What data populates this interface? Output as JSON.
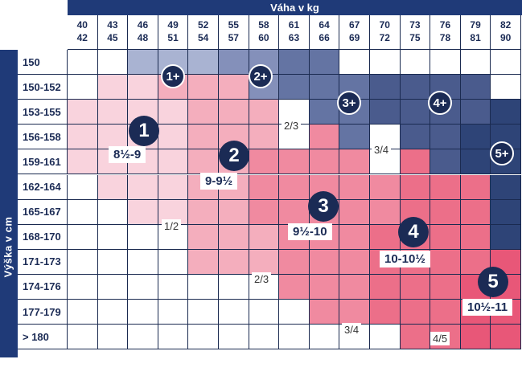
{
  "header": {
    "title": "Váha v kg"
  },
  "side": {
    "title": "Výška v cm"
  },
  "weights": [
    {
      "lo": "40",
      "hi": "42"
    },
    {
      "lo": "43",
      "hi": "45"
    },
    {
      "lo": "46",
      "hi": "48"
    },
    {
      "lo": "49",
      "hi": "51"
    },
    {
      "lo": "52",
      "hi": "54"
    },
    {
      "lo": "55",
      "hi": "57"
    },
    {
      "lo": "58",
      "hi": "60"
    },
    {
      "lo": "61",
      "hi": "63"
    },
    {
      "lo": "64",
      "hi": "66"
    },
    {
      "lo": "67",
      "hi": "69"
    },
    {
      "lo": "70",
      "hi": "72"
    },
    {
      "lo": "73",
      "hi": "75"
    },
    {
      "lo": "76",
      "hi": "78"
    },
    {
      "lo": "79",
      "hi": "81"
    },
    {
      "lo": "82",
      "hi": "90"
    }
  ],
  "heights": [
    "150",
    "150-152",
    "153-155",
    "156-158",
    "159-161",
    "162-164",
    "165-167",
    "168-170",
    "171-173",
    "174-176",
    "177-179",
    "> 180"
  ],
  "colors": {
    "navy": "#1f3a78",
    "w": "#ffffff",
    "p1": "#f9d3dd",
    "p2": "#f4aebd",
    "p3": "#f08aa0",
    "p4": "#ec6f89",
    "p5": "#e85778",
    "b1": "#a9b3d2",
    "b2": "#8490ba",
    "b3": "#6474a3",
    "b4": "#4a5b8d",
    "b5": "#2e4477"
  },
  "grid": [
    [
      "w",
      "w",
      "b1",
      "b1",
      "b1",
      "b2",
      "b2",
      "b3",
      "b3",
      "w",
      "w",
      "w",
      "w",
      "w",
      "w"
    ],
    [
      "w",
      "p1",
      "p1",
      "p2",
      "p2",
      "p2",
      "b2",
      "b3",
      "b3",
      "b3",
      "b4",
      "b4",
      "b4",
      "b4",
      "w"
    ],
    [
      "p1",
      "p1",
      "p1",
      "p1",
      "p2",
      "p2",
      "p2",
      "w",
      "b3",
      "b3",
      "b4",
      "b4",
      "b4",
      "b4",
      "b5"
    ],
    [
      "p1",
      "p1",
      "p1",
      "p1",
      "p2",
      "p2",
      "p2",
      "w",
      "p3",
      "b3",
      "w",
      "b4",
      "b4",
      "b5",
      "b5"
    ],
    [
      "p1",
      "p1",
      "p1",
      "p1",
      "p2",
      "p2",
      "p3",
      "p3",
      "p3",
      "p3",
      "w",
      "p4",
      "b4",
      "b5",
      "b5"
    ],
    [
      "w",
      "p1",
      "p1",
      "p1",
      "p2",
      "p2",
      "p3",
      "p3",
      "p3",
      "p3",
      "p3",
      "p4",
      "p4",
      "p4",
      "b5"
    ],
    [
      "w",
      "w",
      "p1",
      "p1",
      "p2",
      "p2",
      "p3",
      "p3",
      "p3",
      "p3",
      "p3",
      "p4",
      "p4",
      "p4",
      "b5"
    ],
    [
      "w",
      "w",
      "w",
      "w",
      "p2",
      "p2",
      "p2",
      "p3",
      "p3",
      "p3",
      "p4",
      "p4",
      "p4",
      "p4",
      "b5"
    ],
    [
      "w",
      "w",
      "w",
      "w",
      "p2",
      "p2",
      "p2",
      "p3",
      "p3",
      "p3",
      "p4",
      "p4",
      "p4",
      "p4",
      "p5"
    ],
    [
      "w",
      "w",
      "w",
      "w",
      "w",
      "w",
      "w",
      "p3",
      "p3",
      "p3",
      "p4",
      "p4",
      "p4",
      "p5",
      "p5"
    ],
    [
      "w",
      "w",
      "w",
      "w",
      "w",
      "w",
      "w",
      "w",
      "p3",
      "p3",
      "p4",
      "p4",
      "p4",
      "p5",
      "p5"
    ],
    [
      "w",
      "w",
      "w",
      "w",
      "w",
      "w",
      "w",
      "w",
      "w",
      "w",
      "w",
      "p4",
      "p4",
      "p5",
      "p5"
    ]
  ],
  "zones": [
    {
      "num": "1",
      "size": "8½-9"
    },
    {
      "num": "2",
      "size": "9-9½"
    },
    {
      "num": "3",
      "size": "9½-10"
    },
    {
      "num": "4",
      "size": "10-10½"
    },
    {
      "num": "5",
      "size": "10½-11"
    }
  ],
  "plus_zones": [
    "1+",
    "2+",
    "3+",
    "4+",
    "5+"
  ],
  "fractions": [
    "2/3",
    "3/4",
    "1/2",
    "2/3",
    "3/4",
    "4/5"
  ]
}
